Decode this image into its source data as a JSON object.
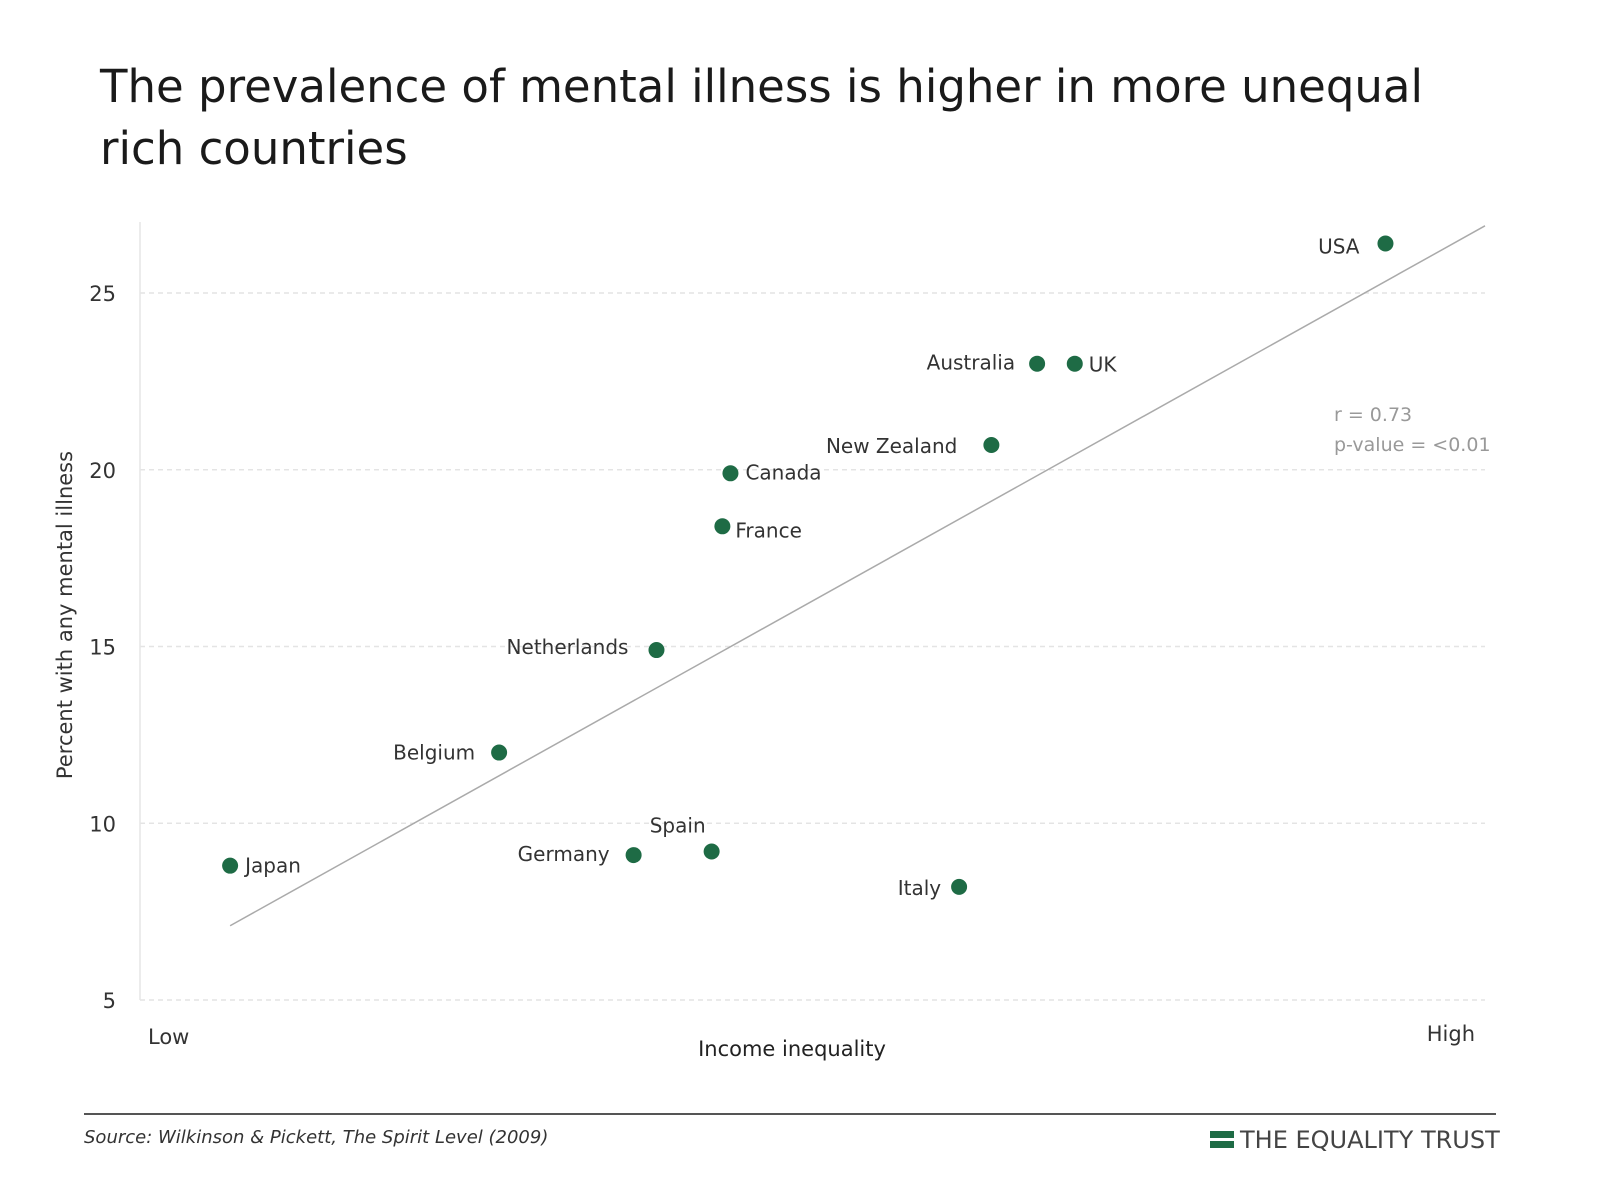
{
  "title": "The prevalence of mental illness is higher in more unequal rich countries",
  "source": "Source: Wilkinson & Pickett, The Spirit Level (2009)",
  "brand": "THE EQUALITY TRUST",
  "colors": {
    "points": "#1e6b45",
    "trend": "#aaaaaa",
    "brand": "#1e6b45"
  },
  "chart_data": {
    "type": "scatter",
    "title": "The prevalence of mental illness is higher in more unequal rich countries",
    "xlabel": "Income inequality",
    "ylabel": "Percent with any mental illness",
    "x_tick_labels": {
      "low": "Low",
      "high": "High"
    },
    "xlim": [
      0,
      1
    ],
    "ylim": [
      5,
      27
    ],
    "y_ticks": [
      5,
      10,
      15,
      20,
      25
    ],
    "grid": "horizontal dashed",
    "points": [
      {
        "label": "USA",
        "x": 0.926,
        "y": 26.4
      },
      {
        "label": "Australia",
        "x": 0.667,
        "y": 23.0
      },
      {
        "label": "UK",
        "x": 0.695,
        "y": 23.0
      },
      {
        "label": "New Zealand",
        "x": 0.633,
        "y": 20.7
      },
      {
        "label": "Canada",
        "x": 0.439,
        "y": 19.9
      },
      {
        "label": "France",
        "x": 0.433,
        "y": 18.4
      },
      {
        "label": "Netherlands",
        "x": 0.384,
        "y": 14.9
      },
      {
        "label": "Belgium",
        "x": 0.267,
        "y": 12.0
      },
      {
        "label": "Japan",
        "x": 0.067,
        "y": 8.8
      },
      {
        "label": "Germany",
        "x": 0.367,
        "y": 9.1
      },
      {
        "label": "Spain",
        "x": 0.425,
        "y": 9.2
      },
      {
        "label": "Italy",
        "x": 0.609,
        "y": 8.2
      }
    ],
    "trendline": {
      "x": [
        0.067,
        1.0
      ],
      "y": [
        7.1,
        26.9
      ]
    },
    "annotations": [
      "r = 0.73",
      "p-value = <0.01"
    ]
  }
}
